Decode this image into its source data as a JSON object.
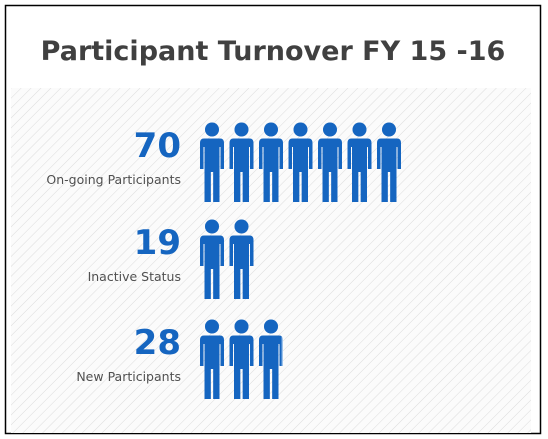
{
  "chart_data": {
    "type": "pictograph",
    "title": "Participant Turnover FY 15 -16",
    "categories": [
      "On-going Participants",
      "Inactive Status",
      "New Participants"
    ],
    "values": [
      70,
      19,
      28
    ],
    "color": "#1565c0"
  }
}
